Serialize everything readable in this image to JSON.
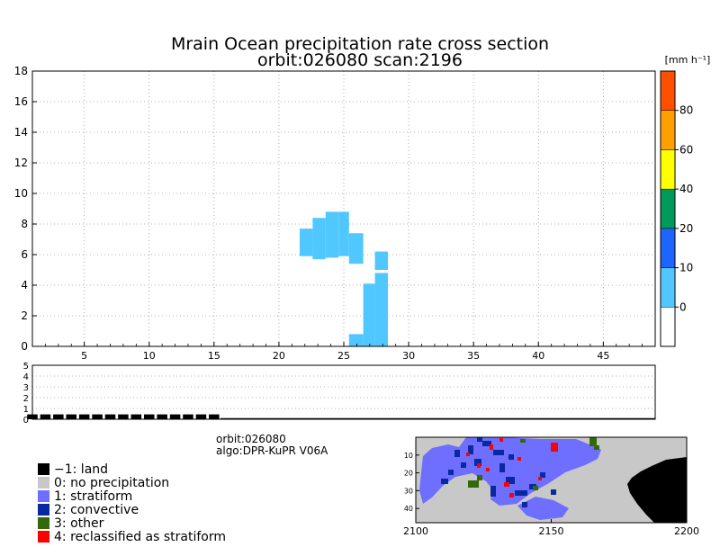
{
  "title": {
    "line1": "Mrain Ocean precipitation rate cross section",
    "line2": "orbit:026080    scan:2196"
  },
  "chart_data": [
    {
      "type": "heatmap",
      "name": "cross-section",
      "xlim": [
        1,
        49
      ],
      "ylim": [
        0,
        18
      ],
      "x_ticks": [
        5,
        10,
        15,
        20,
        25,
        30,
        35,
        40,
        45
      ],
      "y_ticks": [
        0,
        2,
        4,
        6,
        8,
        10,
        12,
        14,
        16,
        18
      ],
      "grid": true,
      "cell_value_class": "0-10",
      "cell_color": "#50c8ff",
      "cells": [
        {
          "x0": 21.6,
          "x1": 22.6,
          "y0": 5.9,
          "y1": 7.7
        },
        {
          "x0": 22.6,
          "x1": 23.6,
          "y0": 5.7,
          "y1": 8.4
        },
        {
          "x0": 23.6,
          "x1": 24.6,
          "y0": 5.8,
          "y1": 8.8
        },
        {
          "x0": 24.6,
          "x1": 25.4,
          "y0": 5.9,
          "y1": 8.8
        },
        {
          "x0": 25.4,
          "x1": 26.5,
          "y0": 5.4,
          "y1": 7.4
        },
        {
          "x0": 25.4,
          "x1": 26.5,
          "y0": 0,
          "y1": 0.8
        },
        {
          "x0": 26.5,
          "x1": 27.4,
          "y0": 0,
          "y1": 4.1
        },
        {
          "x0": 27.4,
          "x1": 28.4,
          "y0": 0,
          "y1": 4.8
        },
        {
          "x0": 27.4,
          "x1": 28.4,
          "y0": 5.0,
          "y1": 6.2
        }
      ]
    },
    {
      "type": "bar",
      "name": "surface-type-strip",
      "ylim": [
        0,
        5
      ],
      "y_ticks": [
        0,
        1,
        2,
        3,
        4,
        5
      ],
      "x_start": 1,
      "bar_height": 0.45,
      "bar_count": 15,
      "bar_width": 0.8,
      "color": "#000000"
    },
    {
      "type": "heatmap",
      "name": "swath-map",
      "x_ticks": [
        2100,
        2150,
        2200
      ],
      "y_ticks": [
        10,
        20,
        30,
        40
      ]
    }
  ],
  "colorbar": {
    "unit": "[mm h⁻¹]",
    "segments": [
      {
        "color": "#ffffff"
      },
      {
        "color": "#50c8ff"
      },
      {
        "color": "#1e64ff"
      },
      {
        "color": "#009a5a"
      },
      {
        "color": "#ffff00"
      },
      {
        "color": "#ffa000"
      },
      {
        "color": "#ff5000"
      }
    ],
    "labels": [
      "0",
      "10",
      "20",
      "40",
      "60",
      "80"
    ]
  },
  "info": {
    "orbit": "orbit:026080",
    "algo": "algo:DPR-KuPR V06A"
  },
  "legend": [
    {
      "label": "−1: land",
      "color": "#000000"
    },
    {
      "label": "0: no precipitation",
      "color": "#c8c8c8"
    },
    {
      "label": "1: stratiform",
      "color": "#6e6eff"
    },
    {
      "label": "2: convective",
      "color": "#0a28a0"
    },
    {
      "label": "3: other",
      "color": "#32690a"
    },
    {
      "label": "4: reclassified as stratiform",
      "color": "#ff0000"
    }
  ]
}
